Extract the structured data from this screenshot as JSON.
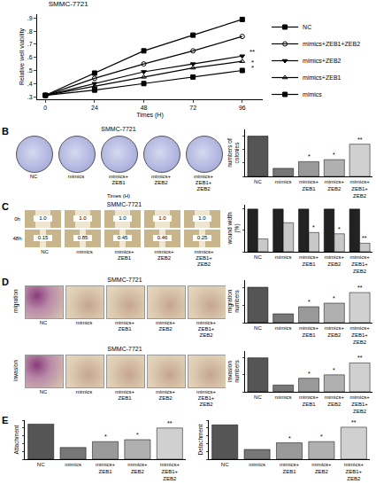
{
  "chart_data": [
    {
      "panel": "A",
      "type": "line",
      "title": "SMMC-7721",
      "x_label": "Times (H)",
      "y_label": "Relative well viability",
      "x": [
        0,
        24,
        48,
        72,
        96
      ],
      "series": [
        {
          "name": "NC",
          "color": "#000000",
          "marker": "square",
          "values": [
            0.31,
            0.48,
            0.65,
            0.77,
            0.89
          ]
        },
        {
          "name": "mimics+ZEB1+ZEB2",
          "color": "#000000",
          "marker": "circle-open",
          "values": [
            0.31,
            0.44,
            0.55,
            0.65,
            0.76
          ]
        },
        {
          "name": "mimics+ZEB2",
          "color": "#000000",
          "marker": "triangle-down",
          "values": [
            0.31,
            0.4,
            0.49,
            0.55,
            0.61
          ]
        },
        {
          "name": "mimics+ZEB1",
          "color": "#000000",
          "marker": "triangle-up-open",
          "values": [
            0.31,
            0.38,
            0.45,
            0.52,
            0.57
          ]
        },
        {
          "name": "mimics",
          "color": "#000000",
          "marker": "square",
          "values": [
            0.31,
            0.35,
            0.4,
            0.45,
            0.5
          ]
        }
      ],
      "xlim": [
        -4,
        106
      ],
      "xticks": [
        0,
        24,
        48,
        72,
        96
      ],
      "ylim": [
        0.28,
        0.93
      ],
      "yticks": [
        {
          "value": 0.3,
          "label": ".3"
        },
        {
          "value": 0.4,
          "label": ".4"
        },
        {
          "value": 0.5,
          "label": ".5"
        },
        {
          "value": 0.6,
          "label": ".6"
        },
        {
          "value": 0.7,
          "label": ".7"
        },
        {
          "value": 0.8,
          "label": ".8"
        },
        {
          "value": 0.9,
          "label": ".9"
        }
      ],
      "annotations": [
        {
          "text": "**",
          "x": 101,
          "y": 0.64
        },
        {
          "text": "*",
          "x": 101,
          "y": 0.56
        },
        {
          "text": "*",
          "x": 101,
          "y": 0.52
        }
      ],
      "grid": false,
      "legend": "right"
    },
    {
      "panel": "B",
      "type": "bar",
      "y_label": "numbers of colonies",
      "categories": [
        "NC",
        "mimics",
        "mimics+ZEB1",
        "mimics+ZEB2",
        "mimics+ZEB1+ZEB2"
      ],
      "values": [
        60,
        12,
        22,
        25,
        48
      ],
      "colors": [
        "#555555",
        "#777777",
        "#999999",
        "#b0b0b0",
        "#d0d0d0"
      ],
      "significance": [
        null,
        null,
        "*",
        "*",
        "**"
      ],
      "ylim": [
        0,
        70
      ],
      "yticks": [
        0,
        20,
        40,
        60
      ],
      "tick_labels": "x",
      "grid": false
    },
    {
      "panel": "C",
      "type": "bar",
      "y_label": "wound width (%)",
      "categories": [
        "NC",
        "mimics",
        "mimics+ZEB1",
        "mimics+ZEB2",
        "mimics+ZEB1+ZEB2"
      ],
      "series": [
        {
          "color": "#222222",
          "values": [
            1,
            1,
            1,
            1,
            1
          ]
        },
        {
          "color": "#c8c8c8",
          "values": [
            0.3,
            0.68,
            0.45,
            0.42,
            0.2
          ]
        }
      ],
      "significance": [
        null,
        null,
        "*",
        "*",
        "**"
      ],
      "ylim": [
        0,
        1.1
      ],
      "yticks": [
        0,
        0.5,
        1
      ],
      "tick_labels": "x",
      "grid": false
    },
    {
      "panel": "D",
      "type": "bar",
      "y_label": "migration numbers",
      "categories": [
        "NC",
        "mimics",
        "mimics+ZEB1",
        "mimics+ZEB2",
        "mimics+ZEB1+ZEB2"
      ],
      "values": [
        100,
        25,
        45,
        55,
        85
      ],
      "colors": [
        "#555555",
        "#777777",
        "#999999",
        "#b0b0b0",
        "#d0d0d0"
      ],
      "significance": [
        null,
        null,
        "*",
        "*",
        "**"
      ],
      "ylim": [
        0,
        120
      ],
      "yticks": [
        0,
        50,
        100
      ],
      "tick_labels": "x",
      "grid": false
    },
    {
      "type": "bar",
      "y_label": "invasion numbers",
      "categories": [
        "NC",
        "mimics",
        "mimics+ZEB1",
        "mimics+ZEB2",
        "mimics+ZEB1+ZEB2"
      ],
      "values": [
        100,
        20,
        40,
        50,
        85
      ],
      "colors": [
        "#555555",
        "#777777",
        "#999999",
        "#b0b0b0",
        "#d0d0d0"
      ],
      "significance": [
        null,
        null,
        "*",
        "*",
        "**"
      ],
      "ylim": [
        0,
        120
      ],
      "yticks": [
        0,
        50,
        100
      ],
      "tick_labels": "x",
      "grid": false
    },
    {
      "panel": "E",
      "type": "bar",
      "y_label": "Attachment",
      "categories": [
        "NC",
        "mimics",
        "mimics+ZEB1",
        "mimics+ZEB2",
        "mimics+ZEB1+ZEB2"
      ],
      "values": [
        0.9,
        0.3,
        0.45,
        0.5,
        0.8
      ],
      "colors": [
        "#555555",
        "#777777",
        "#999999",
        "#b0b0b0",
        "#d0d0d0"
      ],
      "significance": [
        null,
        null,
        "*",
        "*",
        "**"
      ],
      "ylim": [
        0,
        1
      ],
      "yticks": [
        0,
        0.2,
        0.4,
        0.6,
        0.8,
        1
      ],
      "tick_labels": "x",
      "grid": false
    },
    {
      "type": "bar",
      "y_label": "Detachment",
      "categories": [
        "NC",
        "mimics",
        "mimics+ZEB1",
        "mimics+ZEB2",
        "mimics+ZEB1+ZEB2"
      ],
      "values": [
        0.88,
        0.25,
        0.42,
        0.45,
        0.82
      ],
      "colors": [
        "#555555",
        "#777777",
        "#999999",
        "#b0b0b0",
        "#d0d0d0"
      ],
      "significance": [
        null,
        null,
        "*",
        "*",
        "**"
      ],
      "ylim": [
        0,
        1
      ],
      "yticks": [
        0,
        0.2,
        0.4,
        0.6,
        0.8,
        1
      ],
      "tick_labels": "x",
      "grid": false
    }
  ],
  "image_panels": [
    {
      "panel": "B",
      "title": "SMMC-7721",
      "labels": [
        "NC",
        "mimics",
        "mimics+ZEB1",
        "mimics+ZEB2",
        "mimics+ZEB1+ZEB2"
      ],
      "caption": "Times (H)"
    },
    {
      "panel": "C",
      "title": "SMMC-7721",
      "labels": [
        "NC",
        "mimics",
        "mimics+ZEB1",
        "mimics+ZEB2",
        "mimics+ZEB1+ZEB2"
      ],
      "rows": [
        {
          "label": "0h",
          "values": [
            "1.0",
            "1.0",
            "1.0",
            "1.0",
            "1.0"
          ]
        },
        {
          "label": "48h",
          "values": [
            "0.15",
            "0.85",
            "0.45",
            "0.46",
            "0.25"
          ]
        }
      ]
    },
    {
      "panel": "D",
      "title": "SMMC-7721",
      "row_label": "migration",
      "labels": [
        "NC",
        "mimics",
        "mimics+ZEB1",
        "mimics+ZEB2",
        "mimics+ZEB1+ZEB2"
      ]
    },
    {
      "title": "SMMC-7721",
      "row_label": "invasion",
      "labels": [
        "NC",
        "mimics",
        "mimics+ZEB1",
        "mimics+ZEB2",
        "mimics+ZEB1+ZEB2"
      ]
    }
  ]
}
